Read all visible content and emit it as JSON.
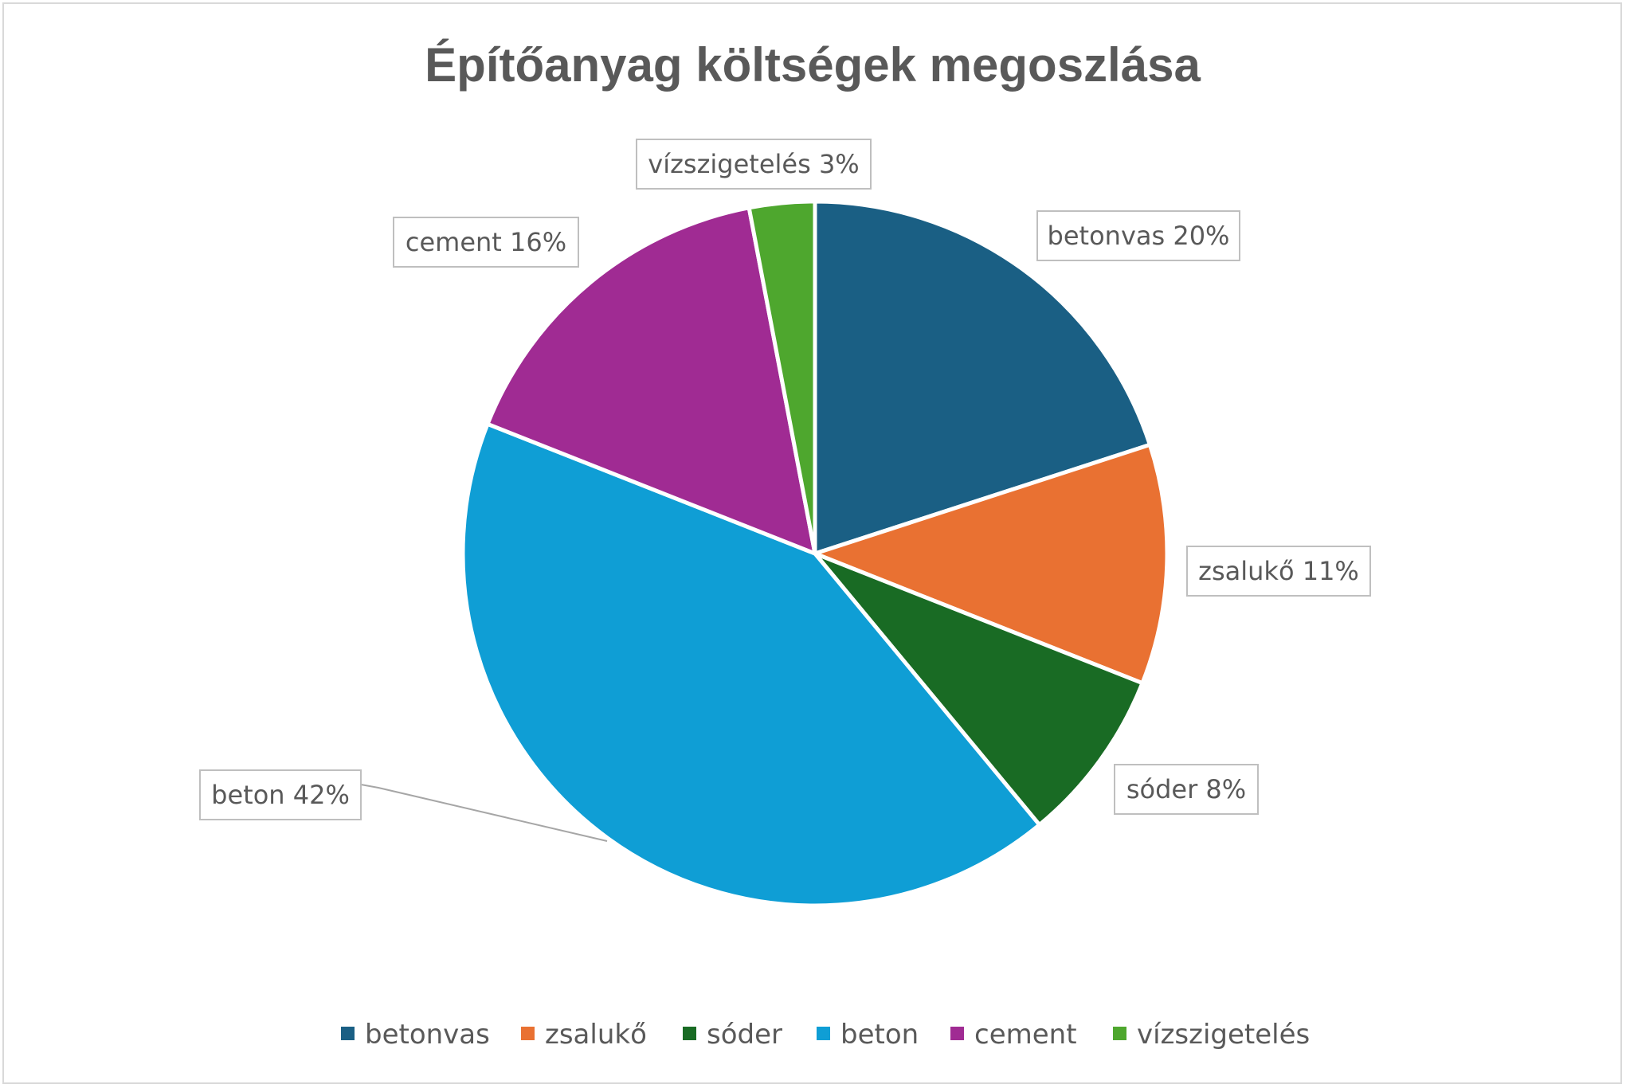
{
  "chart_data": {
    "type": "pie",
    "title": "Építőanyag költségek megoszlása",
    "categories": [
      "betonvas",
      "zsalukő",
      "sóder",
      "beton",
      "cement",
      "vízszigetelés"
    ],
    "values": [
      20,
      11,
      8,
      42,
      16,
      3
    ],
    "value_unit": "%",
    "colors": [
      "#1a5f84",
      "#e97132",
      "#196b24",
      "#0f9ed5",
      "#a02b93",
      "#4ea72e"
    ],
    "data_labels": [
      "betonvas 20%",
      "zsalukő 11%",
      "sóder 8%",
      "beton 42%",
      "cement 16%",
      "vízszigetelés 3%"
    ],
    "legend_position": "bottom",
    "start_angle": "12 o'clock, clockwise"
  }
}
